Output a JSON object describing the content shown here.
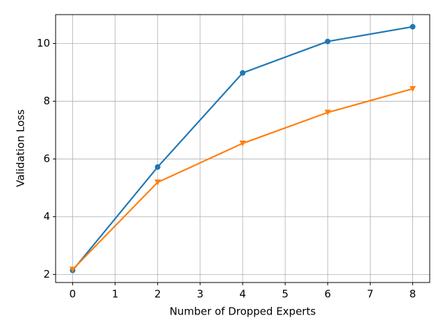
{
  "chart_data": {
    "type": "line",
    "xlabel": "Number of Dropped Experts",
    "ylabel": "Validation Loss",
    "x": [
      0,
      2,
      4,
      6,
      8
    ],
    "series": [
      {
        "color": "#1f77b4",
        "marker": "circle",
        "values": [
          2.14,
          5.72,
          8.98,
          10.07,
          10.58
        ]
      },
      {
        "color": "#ff7f0e",
        "marker": "triangle-down",
        "values": [
          2.17,
          5.19,
          6.54,
          7.61,
          8.43
        ]
      }
    ],
    "xlim": [
      -0.4,
      8.4
    ],
    "xticks": [
      0,
      1,
      2,
      3,
      4,
      5,
      6,
      7,
      8
    ],
    "ylim": [
      1.72,
      11.0
    ],
    "yticks": [
      2,
      4,
      6,
      8,
      10
    ],
    "grid": true
  }
}
